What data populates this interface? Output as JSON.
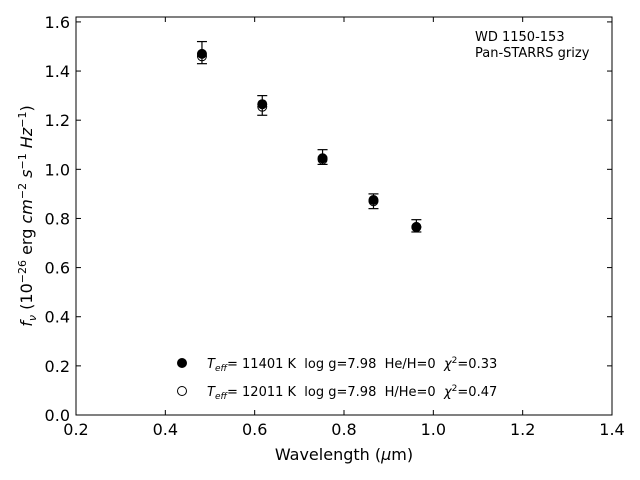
{
  "chart_data": {
    "type": "scatter",
    "xlabel": "Wavelength (μm)",
    "ylabel": "f_ν (10^-26 erg cm^-2 s^-1 Hz^-1)",
    "xlim": [
      0.2,
      1.4
    ],
    "ylim": [
      0.0,
      1.62
    ],
    "x_ticks": [
      "0.2",
      "0.4",
      "0.6",
      "0.8",
      "1.0",
      "1.2",
      "1.4"
    ],
    "y_ticks": [
      "0.0",
      "0.2",
      "0.4",
      "0.6",
      "0.8",
      "1.0",
      "1.2",
      "1.4",
      "1.6"
    ],
    "grid": false,
    "annotation_lines": [
      "WD 1150-153",
      "Pan-STARRS grizy"
    ],
    "observed": {
      "x": [
        0.482,
        0.617,
        0.752,
        0.866,
        0.962
      ],
      "y": [
        1.475,
        1.26,
        1.05,
        0.87,
        0.77
      ],
      "yerr": [
        0.045,
        0.04,
        0.03,
        0.03,
        0.025
      ]
    },
    "series": [
      {
        "marker": "filled-circle",
        "x": [
          0.482,
          0.617,
          0.752,
          0.866,
          0.962
        ],
        "y": [
          1.47,
          1.265,
          1.045,
          0.875,
          0.765
        ],
        "legend": {
          "T": "T",
          "eff": "eff",
          "text": "= 11401 K  log g=7.98  He/H=0  ",
          "chi": "χ",
          "chi_exp": "2",
          "chi_val": "=0.33"
        }
      },
      {
        "marker": "open-circle",
        "x": [
          0.482,
          0.617,
          0.752,
          0.866,
          0.962
        ],
        "y": [
          1.46,
          1.255,
          1.04,
          0.87,
          0.765
        ],
        "legend": {
          "T": "T",
          "eff": "eff",
          "text": "= 12011 K  log g=7.98  H/He=0  ",
          "chi": "χ",
          "chi_exp": "2",
          "chi_val": "=0.47"
        }
      }
    ],
    "legend_position": "lower-center"
  },
  "ylabel_parts": {
    "f": "f",
    "nu": "ν",
    "open": " (10",
    "e1": "−26",
    "erg": " erg ",
    "cm": "cm",
    "e2": "−2",
    "s": " s",
    "e3": "−1",
    "hz": " Hz",
    "e4": "−1",
    "close": ")"
  },
  "xlabel_parts": {
    "a": "Wavelength (",
    "mu": "μ",
    "b": "m)"
  }
}
